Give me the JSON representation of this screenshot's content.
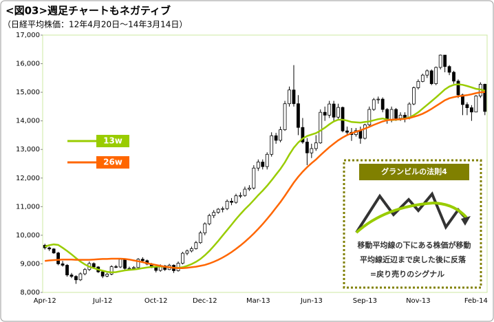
{
  "chart_data": {
    "type": "candlestick",
    "title": "<図03>週足チャートもネガティブ",
    "subtitle": "（日経平均株価：12年4月20日～14年3月14日）",
    "categories": [
      "Apr-12",
      null,
      null,
      null,
      null,
      null,
      null,
      null,
      null,
      null,
      null,
      null,
      null,
      "Jul-12",
      null,
      null,
      null,
      null,
      null,
      null,
      null,
      null,
      null,
      null,
      null,
      "Oct-12",
      null,
      null,
      null,
      null,
      null,
      null,
      null,
      null,
      null,
      null,
      "Dec-12",
      null,
      null,
      null,
      null,
      null,
      null,
      null,
      null,
      null,
      null,
      null,
      "Mar-13",
      null,
      null,
      null,
      null,
      null,
      null,
      null,
      null,
      null,
      null,
      null,
      "Jun-13",
      null,
      null,
      null,
      null,
      null,
      null,
      null,
      null,
      null,
      null,
      null,
      "Sep-13",
      null,
      null,
      null,
      null,
      null,
      null,
      null,
      null,
      null,
      null,
      null,
      "Nov-13",
      null,
      null,
      null,
      null,
      null,
      null,
      null,
      null,
      null,
      null,
      null,
      null,
      "Feb-14",
      null,
      null
    ],
    "open": [
      9650,
      9560,
      9520,
      9380,
      9000,
      8950,
      8610,
      8560,
      8440,
      8650,
      8800,
      9010,
      8890,
      8720,
      8570,
      8640,
      8900,
      8890,
      9160,
      8840,
      8840,
      8870,
      9160,
      9110,
      8990,
      8870,
      8770,
      8930,
      8800,
      8950,
      8760,
      9020,
      9370,
      9450,
      9530,
      9740,
      10080,
      10400,
      10690,
      10800,
      10910,
      10930,
      11190,
      11150,
      11380,
      11390,
      11610,
      11650,
      12350,
      12560,
      12400,
      12830,
      13480,
      13320,
      13690,
      14600,
      15080,
      14600,
      13770,
      13260,
      12880,
      13030,
      13230,
      14300,
      14200,
      14590,
      14130,
      14470,
      13650,
      13600,
      13520,
      13660,
      13390,
      13860,
      14400,
      14740,
      14760,
      14400,
      14020,
      14400,
      14090,
      14200,
      14090,
      14590,
      15160,
      15380,
      15600,
      15750,
      15300,
      15870,
      16300,
      15900,
      15700,
      15390,
      14910,
      14570,
      14460,
      14310,
      14870,
      15280
    ],
    "high": [
      9700,
      9600,
      9550,
      9420,
      9100,
      8990,
      8680,
      8600,
      8700,
      8850,
      9080,
      9050,
      8920,
      8750,
      8680,
      8950,
      8960,
      9200,
      9180,
      8900,
      8920,
      9200,
      9230,
      9150,
      9030,
      8900,
      8980,
      8960,
      9000,
      8980,
      9080,
      9420,
      9500,
      9600,
      9800,
      10150,
      10450,
      10750,
      10880,
      10950,
      11000,
      11250,
      11300,
      11450,
      11500,
      11700,
      11750,
      12450,
      12650,
      12650,
      12900,
      13600,
      13580,
      13800,
      14700,
      15200,
      15950,
      14900,
      14100,
      13400,
      13200,
      13500,
      14400,
      14500,
      14700,
      14700,
      14600,
      14500,
      13800,
      13750,
      13750,
      13800,
      13900,
      14500,
      14800,
      14850,
      14820,
      14450,
      14500,
      14450,
      14300,
      14300,
      14650,
      15200,
      15450,
      15650,
      15800,
      15800,
      15900,
      16320,
      16300,
      15950,
      15750,
      15450,
      14950,
      14650,
      14550,
      14900,
      15350,
      15300
    ],
    "low": [
      9500,
      9450,
      9350,
      8950,
      8900,
      8550,
      8500,
      8300,
      8400,
      8600,
      8750,
      8850,
      8680,
      8500,
      8530,
      8600,
      8850,
      8850,
      8800,
      8780,
      8800,
      8840,
      9050,
      8950,
      8850,
      8700,
      8720,
      8750,
      8780,
      8680,
      8730,
      8980,
      9300,
      9400,
      9500,
      9700,
      10000,
      10350,
      10600,
      10750,
      10800,
      10880,
      11050,
      11100,
      11300,
      11350,
      11550,
      11600,
      12250,
      12300,
      12300,
      12750,
      13200,
      13250,
      13650,
      14500,
      14500,
      13500,
      13200,
      12450,
      12700,
      12950,
      13200,
      14000,
      14100,
      13950,
      14050,
      13600,
      13500,
      13300,
      13450,
      13200,
      13350,
      13800,
      14350,
      14600,
      14300,
      13900,
      13950,
      14000,
      14000,
      13950,
      14050,
      14550,
      15100,
      15350,
      15500,
      15250,
      15250,
      15800,
      15700,
      15600,
      15300,
      14800,
      14200,
      14200,
      14000,
      14300,
      14800,
      14200
    ],
    "close": [
      9560,
      9520,
      9380,
      9000,
      8950,
      8610,
      8560,
      8440,
      8650,
      8800,
      9010,
      8890,
      8720,
      8570,
      8640,
      8900,
      8890,
      9160,
      8840,
      8840,
      8870,
      9160,
      9110,
      8990,
      8870,
      8770,
      8930,
      8800,
      8950,
      8760,
      9020,
      9370,
      9450,
      9530,
      9740,
      10080,
      10400,
      10690,
      10800,
      10910,
      10930,
      11190,
      11150,
      11380,
      11390,
      11610,
      11650,
      12350,
      12560,
      12400,
      12830,
      13480,
      13320,
      13690,
      14600,
      15080,
      14600,
      13770,
      13260,
      12880,
      13030,
      13230,
      14300,
      14200,
      14590,
      14130,
      14470,
      13650,
      13600,
      13520,
      13660,
      13390,
      13860,
      14400,
      14740,
      14760,
      14400,
      14020,
      14400,
      14090,
      14200,
      14090,
      14590,
      15160,
      15380,
      15600,
      15750,
      15300,
      15870,
      16300,
      15900,
      15700,
      15390,
      14910,
      14570,
      14460,
      14310,
      14870,
      15280,
      14330
    ],
    "up_color": "#ffffff",
    "down_color": "#000000",
    "series": [
      {
        "name": "13w",
        "color": "#99cc00",
        "values": [
          9600,
          9650,
          9680,
          9660,
          9560,
          9450,
          9330,
          9200,
          9080,
          8980,
          8900,
          8850,
          8800,
          8760,
          8720,
          8700,
          8710,
          8740,
          8770,
          8790,
          8800,
          8820,
          8850,
          8870,
          8890,
          8900,
          8910,
          8900,
          8880,
          8860,
          8860,
          8880,
          8930,
          8990,
          9070,
          9170,
          9300,
          9450,
          9620,
          9800,
          9990,
          10180,
          10370,
          10560,
          10740,
          10910,
          11060,
          11230,
          11400,
          11560,
          11730,
          11920,
          12120,
          12320,
          12550,
          12820,
          13060,
          13240,
          13380,
          13470,
          13520,
          13570,
          13660,
          13760,
          13880,
          13980,
          14040,
          14040,
          14010,
          13960,
          13950,
          13940,
          13960,
          13980,
          14020,
          14060,
          14080,
          14050,
          14030,
          14040,
          14060,
          14080,
          14120,
          14200,
          14300,
          14430,
          14560,
          14690,
          14820,
          14960,
          15100,
          15200,
          15260,
          15280,
          15260,
          15220,
          15170,
          15120,
          15100,
          15050
        ]
      },
      {
        "name": "26w",
        "color": "#ff6600",
        "values": [
          9100,
          9120,
          9130,
          9140,
          9150,
          9150,
          9150,
          9140,
          9140,
          9140,
          9140,
          9150,
          9160,
          9170,
          9170,
          9180,
          9180,
          9180,
          9170,
          9150,
          9120,
          9090,
          9060,
          9020,
          8990,
          8960,
          8930,
          8900,
          8880,
          8860,
          8850,
          8850,
          8860,
          8880,
          8900,
          8930,
          8960,
          9010,
          9070,
          9140,
          9220,
          9310,
          9410,
          9520,
          9640,
          9770,
          9910,
          10060,
          10220,
          10390,
          10570,
          10760,
          10960,
          11160,
          11380,
          11610,
          11840,
          12040,
          12220,
          12380,
          12520,
          12650,
          12800,
          12940,
          13080,
          13200,
          13320,
          13420,
          13500,
          13570,
          13620,
          13670,
          13730,
          13790,
          13860,
          13920,
          13980,
          14020,
          14040,
          14050,
          14060,
          14070,
          14100,
          14140,
          14190,
          14250,
          14330,
          14420,
          14520,
          14620,
          14720,
          14790,
          14830,
          14860,
          14880,
          14900,
          14930,
          14970,
          15000,
          15010
        ]
      }
    ],
    "ylim": [
      8000,
      17000
    ],
    "yticks": [
      {
        "value": 8000,
        "label": "8,000"
      },
      {
        "value": 9000,
        "label": "9,000"
      },
      {
        "value": 10000,
        "label": "10,000"
      },
      {
        "value": 11000,
        "label": "11,000"
      },
      {
        "value": 12000,
        "label": "12,000"
      },
      {
        "value": 13000,
        "label": "13,000"
      },
      {
        "value": 14000,
        "label": "14,000"
      },
      {
        "value": 15000,
        "label": "15,000"
      },
      {
        "value": 16000,
        "label": "16,000"
      },
      {
        "value": 17000,
        "label": "17,000"
      }
    ],
    "grid": false,
    "annotation": {
      "title": "グランビルの法則4",
      "lines": [
        "移動平均線の下にある株価が移動",
        "平均線近辺まで戻した後に反落",
        "=戻り売りのシグナル"
      ]
    }
  }
}
